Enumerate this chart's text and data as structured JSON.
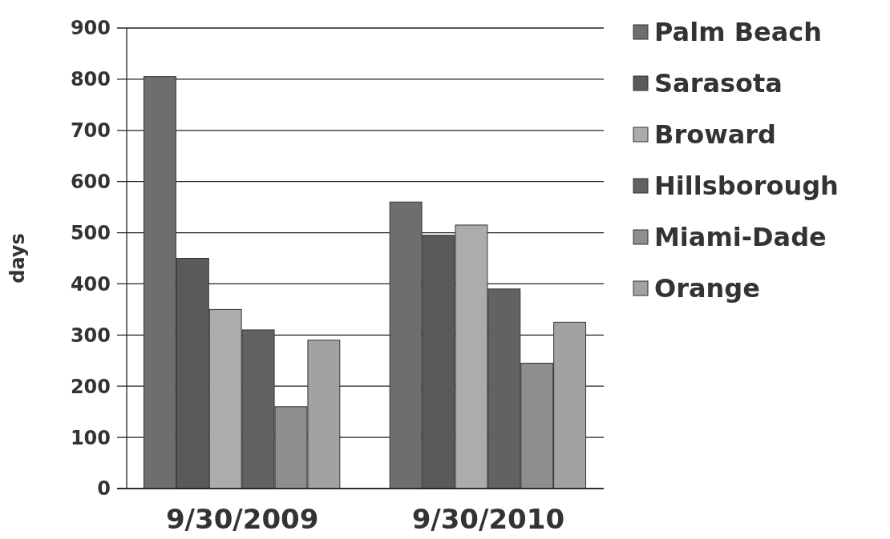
{
  "chart_data": {
    "type": "bar",
    "ylabel": "days",
    "categories": [
      "9/30/2009",
      "9/30/2010"
    ],
    "series": [
      {
        "name": "Palm Beach",
        "color": "#6e6e6e",
        "values": [
          805,
          560
        ]
      },
      {
        "name": "Sarasota",
        "color": "#5a5a5a",
        "values": [
          450,
          495
        ]
      },
      {
        "name": "Broward",
        "color": "#acacac",
        "values": [
          350,
          515
        ]
      },
      {
        "name": "Hillsborough",
        "color": "#626262",
        "values": [
          310,
          390
        ]
      },
      {
        "name": "Miami-Dade",
        "color": "#8e8e8e",
        "values": [
          160,
          245
        ]
      },
      {
        "name": "Orange",
        "color": "#a2a2a2",
        "values": [
          290,
          325
        ]
      }
    ],
    "ylim": [
      0,
      900
    ],
    "yticks": [
      0,
      100,
      200,
      300,
      400,
      500,
      600,
      700,
      800,
      900
    ],
    "grid": "y",
    "legend": "right"
  }
}
